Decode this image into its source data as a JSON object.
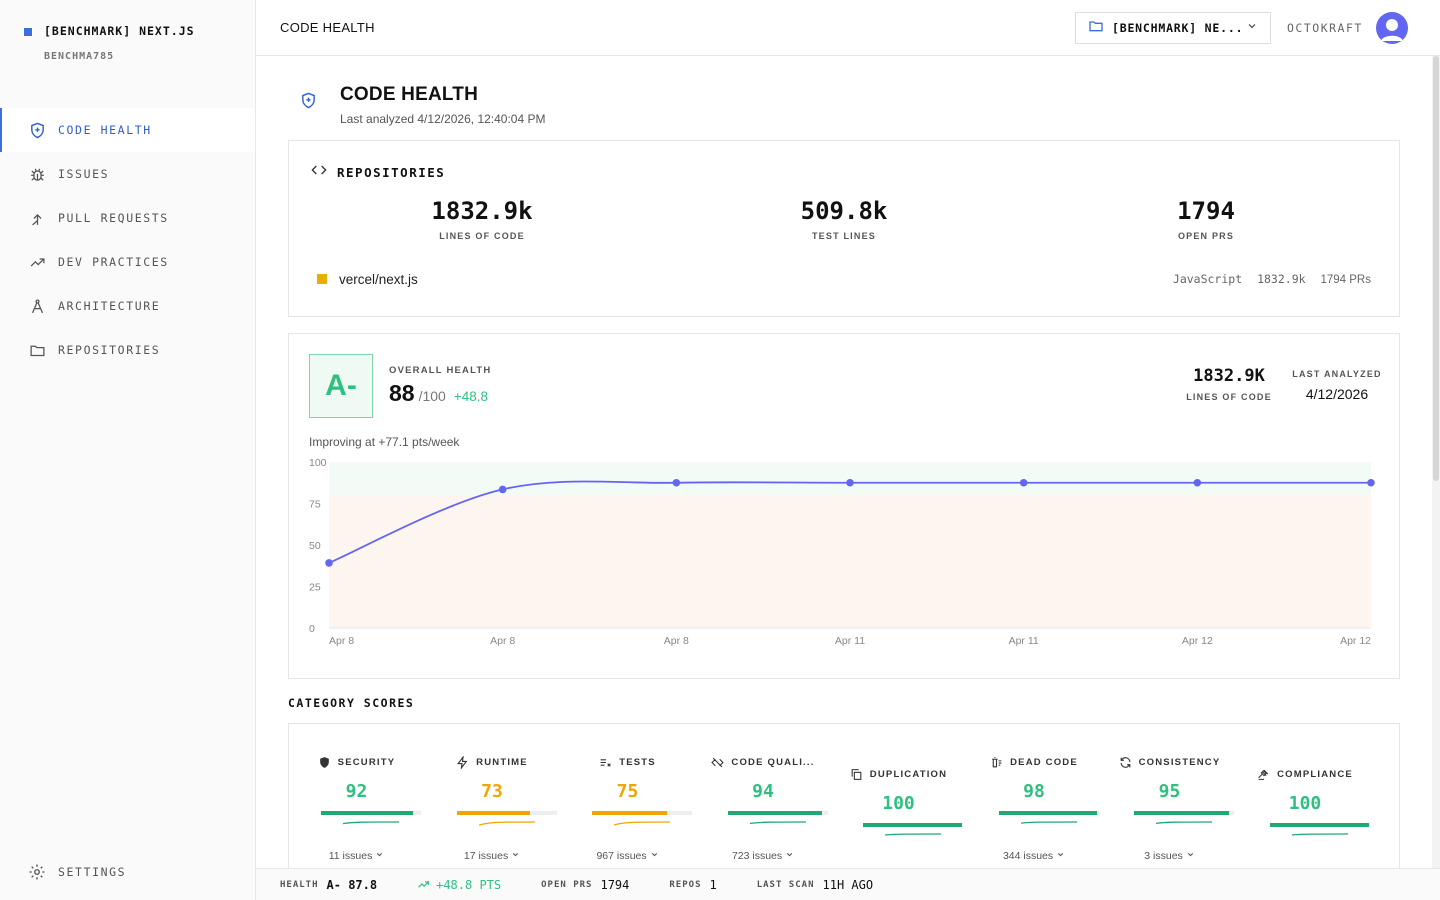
{
  "workspace": {
    "name": "[BENCHMARK] NEXT.JS",
    "sub": "BENCHMA785"
  },
  "sidebar": {
    "items": [
      {
        "label": "CODE HEALTH",
        "icon": "shield-plus-icon"
      },
      {
        "label": "ISSUES",
        "icon": "bug-icon"
      },
      {
        "label": "PULL REQUESTS",
        "icon": "merge-arrow-icon"
      },
      {
        "label": "DEV PRACTICES",
        "icon": "trending-up-icon"
      },
      {
        "label": "ARCHITECTURE",
        "icon": "compass-icon"
      },
      {
        "label": "REPOSITORIES",
        "icon": "folder-icon"
      }
    ],
    "settings_label": "SETTINGS"
  },
  "header": {
    "title": "CODE HEALTH",
    "repo_select": "[BENCHMARK] NE...",
    "org": "OCTOKRAFT"
  },
  "page": {
    "title": "CODE HEALTH",
    "subtitle": "Last analyzed 4/12/2026, 12:40:04 PM"
  },
  "repositories": {
    "heading": "REPOSITORIES",
    "stats": [
      {
        "value": "1832.9k",
        "label": "LINES OF CODE"
      },
      {
        "value": "509.8k",
        "label": "TEST LINES"
      },
      {
        "value": "1794",
        "label": "OPEN PRS"
      }
    ],
    "repo": {
      "name": "vercel/next.js",
      "language": "JavaScript",
      "loc": "1832.9k",
      "prs": "1794 PRs",
      "color": "#e6b000"
    }
  },
  "health": {
    "grade": "A-",
    "label": "OVERALL HEALTH",
    "score": "88",
    "out_of": "/100",
    "delta": "+48.8",
    "loc_value": "1832.9K",
    "loc_label": "LINES OF CODE",
    "last_label": "LAST ANALYZED",
    "last_value": "4/12/2026",
    "trend": "Improving at +77.1 pts/week"
  },
  "chart_data": {
    "type": "line",
    "x": [
      "Apr 8",
      "Apr 8",
      "Apr 8",
      "Apr 11",
      "Apr 11",
      "Apr 12",
      "Apr 12"
    ],
    "series": [
      {
        "values": [
          39.2,
          83.5,
          87.5,
          87.5,
          87.5,
          87.5,
          87.5
        ]
      }
    ],
    "ylim": [
      0,
      100
    ],
    "yticks": [
      "0",
      "25",
      "50",
      "75",
      "100"
    ],
    "line_color": "#6366f1"
  },
  "categories": {
    "heading": "CATEGORY SCORES",
    "items": [
      {
        "label": "SECURITY",
        "icon": "shield-icon",
        "score": "92",
        "pct": 92,
        "color": "#1faa72",
        "issues": "11 issues"
      },
      {
        "label": "RUNTIME",
        "icon": "lightning-icon",
        "score": "73",
        "pct": 73,
        "color": "#f0a500",
        "issues": "17 issues"
      },
      {
        "label": "TESTS",
        "icon": "checklist-icon",
        "score": "75",
        "pct": 75,
        "color": "#f0a500",
        "issues": "967 issues"
      },
      {
        "label": "CODE QUALI...",
        "icon": "code-slash-icon",
        "score": "94",
        "pct": 94,
        "color": "#1faa72",
        "issues": "723 issues"
      },
      {
        "label": "DUPLICATION",
        "icon": "copy-icon",
        "score": "100",
        "pct": 100,
        "color": "#1faa72",
        "issues": ""
      },
      {
        "label": "DEAD CODE",
        "icon": "trash-list-icon",
        "score": "98",
        "pct": 98,
        "color": "#1faa72",
        "issues": "344 issues"
      },
      {
        "label": "CONSISTENCY",
        "icon": "refresh-icon",
        "score": "95",
        "pct": 95,
        "color": "#1faa72",
        "issues": "3 issues"
      },
      {
        "label": "COMPLIANCE",
        "icon": "gavel-icon",
        "score": "100",
        "pct": 100,
        "color": "#1faa72",
        "issues": ""
      }
    ]
  },
  "footer": {
    "health_label": "HEALTH",
    "health_value": "A- 87.8",
    "delta": "+48.8 PTS",
    "prs_label": "OPEN PRS",
    "prs_value": "1794",
    "repos_label": "REPOS",
    "repos_value": "1",
    "scan_label": "LAST SCAN",
    "scan_value": "11H AGO"
  },
  "colors": {
    "accent": "#3b6fe0",
    "good": "#2fbf7f",
    "warn": "#f0a500"
  }
}
